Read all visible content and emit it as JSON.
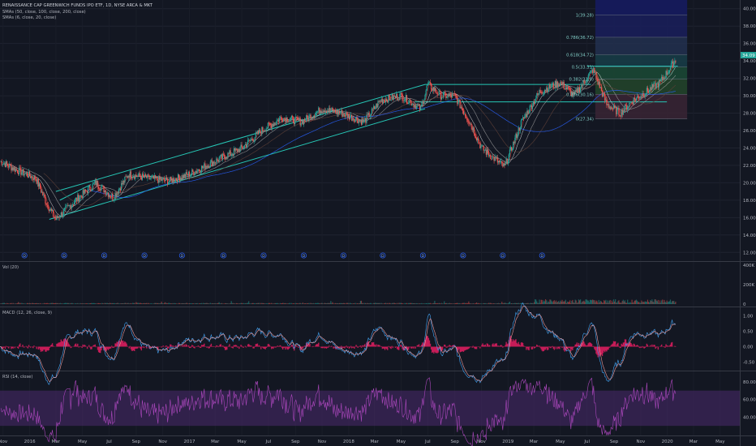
{
  "header": {
    "symbol_title": "RENAISSANCE CAP GREENWICH FUNDS IPO ETF, 1D, NYSE ARCA & MKT",
    "indicator_1": "SMAs (50, close, 100, close, 200, close)",
    "indicator_2": "SMAs (6, close, 20, close)"
  },
  "price_pane": {
    "y_ticks": [
      "40.00",
      "38.00",
      "36.00",
      "34.00",
      "32.00",
      "30.00",
      "28.00",
      "26.00",
      "24.00",
      "22.00",
      "20.00",
      "18.00",
      "16.00",
      "14.00",
      "12.00"
    ],
    "last_price_label": "34.09",
    "dividend_marker": "D",
    "fib_levels": [
      {
        "label": "1(39.28)",
        "value": 39.28
      },
      {
        "label": "0.786(36.72)",
        "value": 36.72
      },
      {
        "label": "0.618(34.72)",
        "value": 34.72
      },
      {
        "label": "0.5(33.31)",
        "value": 33.31
      },
      {
        "label": "0.382(31.9)",
        "value": 31.9
      },
      {
        "label": "0.236(30.16)",
        "value": 30.16
      },
      {
        "label": "0(27.34)",
        "value": 27.34
      }
    ]
  },
  "volume_pane": {
    "title": "Vol (20)",
    "y_ticks": [
      "400K",
      "200K",
      "0"
    ]
  },
  "macd_pane": {
    "title": "MACD (12, 26, close, 9)",
    "y_ticks": [
      "1.00",
      "0.50",
      "0.00",
      "-0.50"
    ]
  },
  "rsi_pane": {
    "title": "RSI (14, close)",
    "y_ticks": [
      "80.00",
      "60.00",
      "40.00"
    ]
  },
  "time_axis": {
    "labels": [
      "Nov",
      "2016",
      "Mar",
      "May",
      "Jul",
      "Sep",
      "Nov",
      "2017",
      "Mar",
      "May",
      "Jul",
      "Sep",
      "Nov",
      "2018",
      "Mar",
      "May",
      "Jul",
      "Sep",
      "Nov",
      "2019",
      "Mar",
      "May",
      "Jul",
      "Sep",
      "Nov",
      "2020",
      "Mar",
      "May"
    ]
  },
  "colors": {
    "background": "#131722",
    "channel": "#26c6b5",
    "up_candle": "#26a69a",
    "down_candle": "#ef5350",
    "sma_red": "#e53935",
    "sma_blue": "#2962ff",
    "macd_hist": "#e91e63",
    "rsi_band": "#4a2a6e",
    "last_price": "#26a69a"
  },
  "chart_data": {
    "type": "line",
    "title": "RENAISSANCE CAP GREENWICH FUNDS IPO ETF, 1D, NYSE ARCA & MKT",
    "ylabel": "",
    "ylim": [
      11,
      41
    ],
    "x_range": [
      "2015-10-25",
      "2020-06-15"
    ],
    "series": [
      {
        "name": "",
        "x": [
          "2015-10-25",
          "2015-12-01",
          "2016-01-15",
          "2016-02-10",
          "2016-03-01",
          "2016-04-15",
          "2016-06-01",
          "2016-07-10",
          "2016-08-15",
          "2016-10-01",
          "2016-11-15",
          "2017-01-01",
          "2017-03-01",
          "2017-05-01",
          "2017-06-15",
          "2017-08-01",
          "2017-09-15",
          "2017-11-01",
          "2017-12-15",
          "2018-02-05",
          "2018-03-15",
          "2018-05-01",
          "2018-06-15",
          "2018-07-01",
          "2018-08-01",
          "2018-09-01",
          "2018-10-10",
          "2018-11-01",
          "2018-12-24",
          "2019-02-01",
          "2019-03-15",
          "2019-05-01",
          "2019-06-01",
          "2019-07-15",
          "2019-08-15",
          "2019-09-15",
          "2019-10-15",
          "2019-11-15",
          "2019-12-15",
          "2020-01-20"
        ],
        "values": [
          22.5,
          21.5,
          20.5,
          17.5,
          15.8,
          18.0,
          20.0,
          18.3,
          21.0,
          20.5,
          20.2,
          21.0,
          22.5,
          24.0,
          26.0,
          27.5,
          27.0,
          28.5,
          28.0,
          27.0,
          29.5,
          30.0,
          28.5,
          31.3,
          30.0,
          30.0,
          26.5,
          24.0,
          21.8,
          27.0,
          30.5,
          31.5,
          30.0,
          33.0,
          29.0,
          28.0,
          29.5,
          30.5,
          31.5,
          34.1
        ]
      }
    ],
    "volume_max": 400000,
    "macd_range": [
      -0.75,
      1.25
    ],
    "rsi_levels": [
      30,
      70
    ],
    "grid": true
  }
}
